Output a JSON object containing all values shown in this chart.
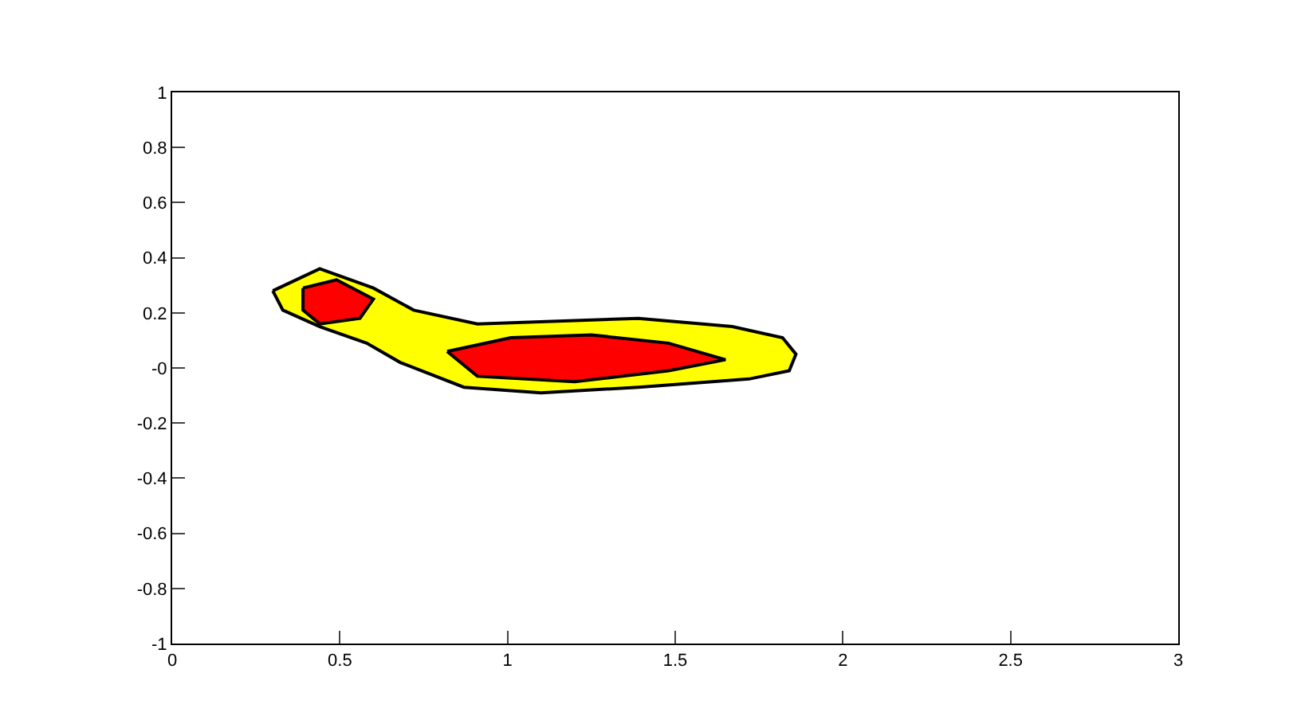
{
  "chart_data": {
    "type": "area",
    "xlim": [
      0,
      3
    ],
    "ylim": [
      -1,
      1
    ],
    "xticks": [
      0,
      0.5,
      1,
      1.5,
      2,
      2.5,
      3
    ],
    "yticks": [
      -1,
      -0.8,
      -0.6,
      -0.4,
      -0.2,
      {
        "value": 0,
        "label": "-0"
      },
      0.2,
      0.4,
      0.6,
      0.8,
      1
    ],
    "series": [
      {
        "color": "#ffff00",
        "x": [
          0.3,
          0.44,
          0.6,
          0.72,
          0.91,
          1.39,
          1.67,
          1.82,
          1.86,
          1.84,
          1.72,
          1.39,
          1.1,
          0.87,
          0.68,
          0.58,
          0.44,
          0.33,
          0.3
        ],
        "values": [
          0.28,
          0.36,
          0.29,
          0.21,
          0.16,
          0.18,
          0.15,
          0.11,
          0.05,
          -0.01,
          -0.04,
          -0.07,
          -0.09,
          -0.07,
          0.02,
          0.09,
          0.15,
          0.21,
          0.28
        ]
      },
      {
        "color": "#ff0000",
        "x": [
          0.39,
          0.49,
          0.6,
          0.56,
          0.44,
          0.39,
          0.39
        ],
        "values": [
          0.29,
          0.32,
          0.25,
          0.18,
          0.16,
          0.21,
          0.29
        ]
      },
      {
        "color": "#ff0000",
        "x": [
          0.82,
          1.01,
          1.25,
          1.48,
          1.65,
          1.48,
          1.2,
          0.91,
          0.82
        ],
        "values": [
          0.06,
          0.11,
          0.12,
          0.09,
          0.03,
          -0.01,
          -0.05,
          -0.03,
          0.06
        ]
      }
    ]
  }
}
